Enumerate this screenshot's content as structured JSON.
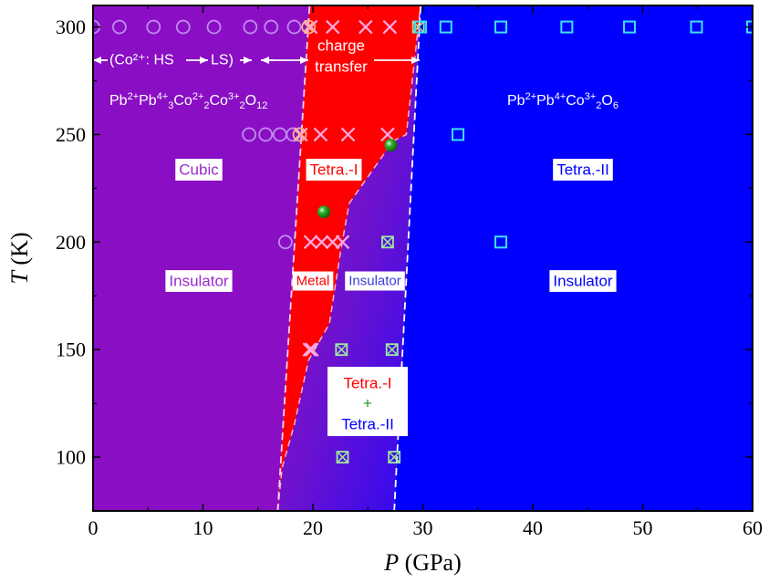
{
  "chart_data": {
    "type": "scatter",
    "xlabel": {
      "symbol": "P",
      "unit": " (GPa)"
    },
    "ylabel": {
      "symbol": "T",
      "unit": " (K)"
    },
    "xlim": [
      0,
      60
    ],
    "ylim": [
      75,
      310
    ],
    "x_ticks": [
      0,
      10,
      20,
      30,
      40,
      50,
      60
    ],
    "y_ticks": [
      100,
      150,
      200,
      250,
      300
    ],
    "grid": false,
    "regions": {
      "left": {
        "color": "#8a0fc4",
        "label_structure": "Cubic",
        "label_conduction": "Insulator"
      },
      "middle": {
        "color": "#ff0000",
        "label_structure": "Tetra.-I",
        "label_conduction": "Metal"
      },
      "coexist": {
        "label_conduction": "Insulator",
        "label_phase_a": "Tetra.-I",
        "label_plus": "+",
        "label_phase_b": "Tetra.-II"
      },
      "right": {
        "color": "#0000ff",
        "label_structure": "Tetra.-II",
        "label_conduction": "Insulator"
      }
    },
    "boundaries": {
      "left_dashed": [
        [
          16.8,
          75
        ],
        [
          19.7,
          310
        ]
      ],
      "right_dashed": [
        [
          27.4,
          75
        ],
        [
          29.8,
          310
        ]
      ],
      "red_region_edge": [
        [
          16.8,
          75
        ],
        [
          17.2,
          95
        ],
        [
          18.3,
          115
        ],
        [
          19.6,
          145
        ],
        [
          21.5,
          162
        ],
        [
          22.5,
          195
        ],
        [
          23.3,
          218
        ],
        [
          27.3,
          247
        ],
        [
          28.5,
          250
        ],
        [
          29.8,
          310
        ]
      ]
    },
    "annotations": {
      "spin_state": "(Co²⁺: HS",
      "spin_state_to": "LS)",
      "charge_line1": "charge",
      "charge_line2": "transfer"
    },
    "formula_left": [
      {
        "t": "Pb"
      },
      {
        "t": "2+",
        "sup": true
      },
      {
        "t": "Pb"
      },
      {
        "t": "4+",
        "sup": true
      },
      {
        "t": "3",
        "sub": true
      },
      {
        "t": "Co"
      },
      {
        "t": "2+",
        "sup": true
      },
      {
        "t": "2",
        "sub": true
      },
      {
        "t": "Co"
      },
      {
        "t": "3+",
        "sup": true
      },
      {
        "t": "2",
        "sub": true
      },
      {
        "t": "O"
      },
      {
        "t": "12",
        "sub": true
      }
    ],
    "formula_right": [
      {
        "t": "Pb"
      },
      {
        "t": "2+",
        "sup": true
      },
      {
        "t": "Pb"
      },
      {
        "t": "4+",
        "sup": true
      },
      {
        "t": "Co"
      },
      {
        "t": "3+",
        "sup": true
      },
      {
        "t": "2",
        "sub": true
      },
      {
        "t": "O"
      },
      {
        "t": "6",
        "sub": true
      }
    ],
    "series": [
      {
        "marker": "circle",
        "color": "#c08af0",
        "points": [
          [
            0,
            300
          ],
          [
            2.4,
            300
          ],
          [
            5.5,
            300
          ],
          [
            8.2,
            300
          ],
          [
            11,
            300
          ],
          [
            14.3,
            300
          ],
          [
            16.2,
            300
          ],
          [
            18.3,
            300
          ],
          [
            14.2,
            250
          ],
          [
            15.7,
            250
          ],
          [
            17,
            250
          ],
          [
            18.2,
            250
          ],
          [
            17.5,
            200
          ]
        ]
      },
      {
        "marker": "cross",
        "color": "#ffa8e0",
        "points": [
          [
            19.8,
            300
          ],
          [
            21.8,
            300
          ],
          [
            24.8,
            300
          ],
          [
            27,
            300
          ],
          [
            18.9,
            250
          ],
          [
            20.7,
            250
          ],
          [
            23.2,
            250
          ],
          [
            26.8,
            250
          ],
          [
            19.8,
            200
          ],
          [
            20.8,
            200
          ],
          [
            21.8,
            200
          ],
          [
            22.7,
            200
          ],
          [
            19.7,
            150
          ],
          [
            19.9,
            150
          ]
        ]
      },
      {
        "marker": "circle-x",
        "color": "#ffb090",
        "points": [
          [
            19.6,
            300
          ],
          [
            18.8,
            250
          ]
        ]
      },
      {
        "marker": "square-x",
        "color": "#9ee89e",
        "points": [
          [
            29.6,
            300
          ],
          [
            26.8,
            200
          ],
          [
            22.6,
            150
          ],
          [
            27.2,
            150
          ],
          [
            22.7,
            100
          ],
          [
            27.4,
            100
          ]
        ]
      },
      {
        "marker": "square",
        "color": "#40e0f0",
        "points": [
          [
            29.8,
            300
          ],
          [
            32.1,
            300
          ],
          [
            37.1,
            300
          ],
          [
            43.1,
            300
          ],
          [
            48.8,
            300
          ],
          [
            54.9,
            300
          ],
          [
            60,
            300
          ],
          [
            33.2,
            250
          ],
          [
            37.1,
            200
          ]
        ]
      },
      {
        "marker": "sphere",
        "color": "#1a9a1a",
        "points": [
          [
            21,
            214
          ],
          [
            27.1,
            245
          ]
        ]
      }
    ]
  }
}
